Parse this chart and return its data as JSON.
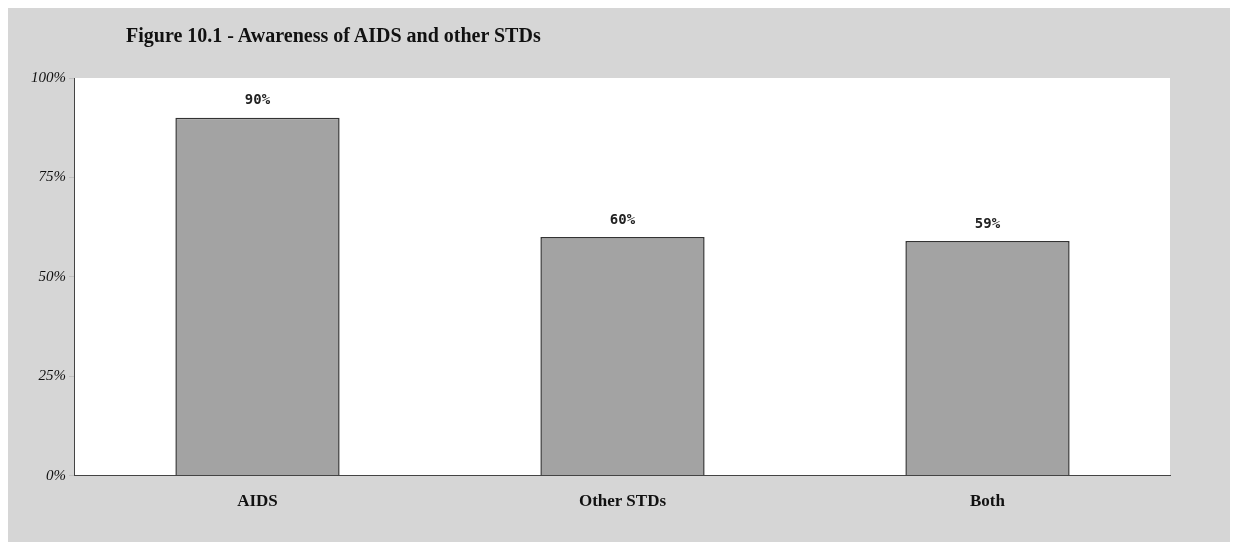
{
  "chart_data": {
    "type": "bar",
    "title": "Figure 10.1 - Awareness of AIDS and other STDs",
    "categories": [
      "AIDS",
      "Other STDs",
      "Both"
    ],
    "values": [
      90,
      60,
      59
    ],
    "value_labels": [
      "90%",
      "60%",
      "59%"
    ],
    "color": "#a3a3a3",
    "ylim": [
      0,
      100
    ],
    "yticks": [
      {
        "value": 0,
        "label": "0%"
      },
      {
        "value": 25,
        "label": "25%"
      },
      {
        "value": 50,
        "label": "50%"
      },
      {
        "value": 75,
        "label": "75%"
      },
      {
        "value": 100,
        "label": "100%"
      }
    ],
    "grid": false,
    "legend": false
  }
}
